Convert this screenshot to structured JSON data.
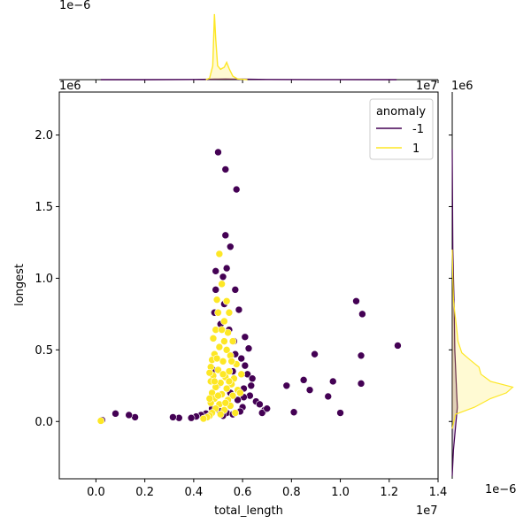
{
  "chart_data": {
    "type": "scatter",
    "xlabel": "total_length",
    "ylabel": "longest",
    "x_scale_label": "1e7",
    "y_scale_label": "1e6",
    "xlim": [
      -1500000,
      14000000
    ],
    "ylim": [
      -400000,
      2300000
    ],
    "x_ticks": [
      0,
      2000000,
      4000000,
      6000000,
      8000000,
      10000000,
      12000000,
      14000000
    ],
    "x_tick_labels": [
      "0.0",
      "0.2",
      "0.4",
      "0.6",
      "0.8",
      "1.0",
      "1.2",
      "1.4"
    ],
    "y_ticks": [
      0,
      500000,
      1000000,
      1500000,
      2000000
    ],
    "y_tick_labels": [
      "0.0",
      "0.5",
      "1.0",
      "1.5",
      "2.0"
    ],
    "top_marginal_scale_label": "1e−6",
    "right_marginal_scale_label": "1e−6",
    "legend": {
      "title": "anomaly",
      "location": "upper right",
      "entries": [
        {
          "label": "-1",
          "color": "#440154"
        },
        {
          "label": "1",
          "color": "#fde725"
        }
      ]
    },
    "series": [
      {
        "name": "-1",
        "color": "#440154",
        "points": [
          [
            5000000,
            1880000
          ],
          [
            5300000,
            1760000
          ],
          [
            5750000,
            1620000
          ],
          [
            5300000,
            1300000
          ],
          [
            5500000,
            1220000
          ],
          [
            4900000,
            1050000
          ],
          [
            5350000,
            1070000
          ],
          [
            5200000,
            1010000
          ],
          [
            4900000,
            920000
          ],
          [
            5700000,
            920000
          ],
          [
            5850000,
            780000
          ],
          [
            4850000,
            760000
          ],
          [
            5450000,
            640000
          ],
          [
            6100000,
            590000
          ],
          [
            6250000,
            510000
          ],
          [
            6100000,
            390000
          ],
          [
            6200000,
            330000
          ],
          [
            6400000,
            300000
          ],
          [
            6350000,
            250000
          ],
          [
            6300000,
            180000
          ],
          [
            6050000,
            170000
          ],
          [
            6000000,
            100000
          ],
          [
            5900000,
            70000
          ],
          [
            6550000,
            140000
          ],
          [
            6700000,
            120000
          ],
          [
            6900000,
            80000
          ],
          [
            6800000,
            60000
          ],
          [
            7000000,
            90000
          ],
          [
            7800000,
            250000
          ],
          [
            8500000,
            290000
          ],
          [
            8750000,
            220000
          ],
          [
            8950000,
            470000
          ],
          [
            9500000,
            175000
          ],
          [
            9700000,
            280000
          ],
          [
            10000000,
            60000
          ],
          [
            10650000,
            840000
          ],
          [
            10900000,
            750000
          ],
          [
            10850000,
            460000
          ],
          [
            10850000,
            265000
          ],
          [
            12350000,
            530000
          ],
          [
            8100000,
            65000
          ],
          [
            4800000,
            360000
          ],
          [
            4750000,
            90000
          ],
          [
            4500000,
            55000
          ],
          [
            4300000,
            45000
          ],
          [
            4100000,
            35000
          ],
          [
            3900000,
            25000
          ],
          [
            3400000,
            25000
          ],
          [
            3150000,
            30000
          ],
          [
            1600000,
            30000
          ],
          [
            1350000,
            45000
          ],
          [
            800000,
            55000
          ],
          [
            250000,
            10000
          ],
          [
            5600000,
            350000
          ],
          [
            5500000,
            200000
          ],
          [
            5350000,
            60000
          ],
          [
            5600000,
            50000
          ],
          [
            5200000,
            40000
          ],
          [
            5050000,
            75000
          ],
          [
            4950000,
            250000
          ],
          [
            5700000,
            470000
          ],
          [
            5950000,
            440000
          ],
          [
            5250000,
            820000
          ],
          [
            5650000,
            560000
          ],
          [
            5100000,
            680000
          ],
          [
            6050000,
            230000
          ],
          [
            5800000,
            150000
          ]
        ]
      },
      {
        "name": "1",
        "color": "#fde725",
        "points": [
          [
            5050000,
            1170000
          ],
          [
            5150000,
            960000
          ],
          [
            4950000,
            850000
          ],
          [
            5350000,
            840000
          ],
          [
            5000000,
            760000
          ],
          [
            5250000,
            700000
          ],
          [
            4900000,
            640000
          ],
          [
            5400000,
            620000
          ],
          [
            4800000,
            580000
          ],
          [
            5600000,
            560000
          ],
          [
            5050000,
            520000
          ],
          [
            5350000,
            500000
          ],
          [
            4850000,
            470000
          ],
          [
            5500000,
            460000
          ],
          [
            4750000,
            430000
          ],
          [
            5200000,
            420000
          ],
          [
            5750000,
            400000
          ],
          [
            4700000,
            380000
          ],
          [
            5000000,
            360000
          ],
          [
            5450000,
            350000
          ],
          [
            4800000,
            320000
          ],
          [
            5300000,
            310000
          ],
          [
            5650000,
            300000
          ],
          [
            4700000,
            280000
          ],
          [
            5100000,
            270000
          ],
          [
            5550000,
            260000
          ],
          [
            4900000,
            240000
          ],
          [
            5350000,
            230000
          ],
          [
            5800000,
            220000
          ],
          [
            4750000,
            200000
          ],
          [
            5150000,
            190000
          ],
          [
            5600000,
            180000
          ],
          [
            4850000,
            160000
          ],
          [
            5400000,
            150000
          ],
          [
            4700000,
            130000
          ],
          [
            5050000,
            120000
          ],
          [
            5500000,
            110000
          ],
          [
            4900000,
            90000
          ],
          [
            5250000,
            80000
          ],
          [
            4750000,
            60000
          ],
          [
            5100000,
            50000
          ],
          [
            5700000,
            60000
          ],
          [
            4650000,
            40000
          ],
          [
            4550000,
            30000
          ],
          [
            4400000,
            20000
          ],
          [
            200000,
            5000
          ],
          [
            5950000,
            330000
          ],
          [
            5900000,
            200000
          ],
          [
            4650000,
            340000
          ],
          [
            4650000,
            160000
          ],
          [
            5250000,
            560000
          ],
          [
            5150000,
            640000
          ],
          [
            5450000,
            760000
          ],
          [
            4950000,
            440000
          ],
          [
            5550000,
            420000
          ],
          [
            5200000,
            330000
          ],
          [
            4850000,
            280000
          ],
          [
            5000000,
            180000
          ],
          [
            5450000,
            280000
          ],
          [
            5300000,
            130000
          ]
        ]
      }
    ],
    "top_marginal": {
      "type": "kde",
      "series": [
        {
          "name": "-1",
          "color": "#440154",
          "x": [
            200000,
            2000000,
            4000000,
            4700000,
            4850000,
            5000000,
            5300000,
            5600000,
            6000000,
            7000000,
            9000000,
            12300000
          ],
          "y": [
            0,
            0,
            0.002,
            0.005,
            0.006,
            0.008,
            0.009,
            0.008,
            0.006,
            0.003,
            0.001,
            0
          ]
        },
        {
          "name": "1",
          "color": "#fde725",
          "x": [
            4500000,
            4650000,
            4780000,
            4850000,
            4900000,
            4980000,
            5100000,
            5250000,
            5350000,
            5450000,
            5600000,
            5800000,
            6200000
          ],
          "y": [
            0,
            0.02,
            0.2,
            0.95,
            0.6,
            0.2,
            0.15,
            0.18,
            0.25,
            0.16,
            0.05,
            0.01,
            0
          ]
        }
      ]
    },
    "right_marginal": {
      "type": "kde",
      "series": [
        {
          "name": "-1",
          "color": "#440154",
          "y": [
            -380000,
            -200000,
            0,
            100000,
            200000,
            300000,
            500000,
            800000,
            1200000,
            1900000
          ],
          "x": [
            0,
            0.02,
            0.06,
            0.08,
            0.07,
            0.06,
            0.04,
            0.03,
            0.01,
            0
          ]
        },
        {
          "name": "1",
          "color": "#fde725",
          "y": [
            -50000,
            50000,
            100000,
            160000,
            200000,
            240000,
            280000,
            330000,
            380000,
            430000,
            480000,
            560000,
            650000,
            760000,
            850000,
            1000000,
            1200000
          ],
          "x": [
            0,
            0.05,
            0.35,
            0.6,
            0.85,
            0.95,
            0.6,
            0.45,
            0.42,
            0.28,
            0.15,
            0.09,
            0.07,
            0.04,
            0.02,
            0.01,
            0
          ]
        }
      ]
    }
  }
}
